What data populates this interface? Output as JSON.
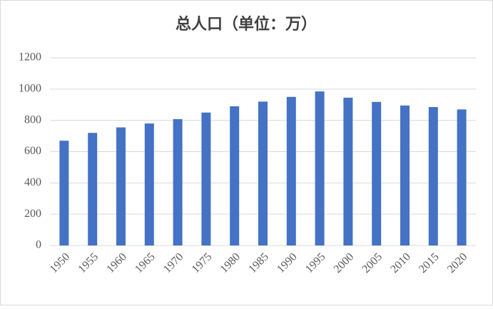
{
  "chart_data": {
    "type": "bar",
    "title": "总人口（单位：万）",
    "categories": [
      "1950",
      "1955",
      "1960",
      "1965",
      "1970",
      "1975",
      "1980",
      "1985",
      "1990",
      "1995",
      "2000",
      "2005",
      "2010",
      "2015",
      "2020"
    ],
    "values": [
      670,
      720,
      755,
      780,
      808,
      850,
      890,
      920,
      950,
      985,
      945,
      918,
      895,
      885,
      870
    ],
    "color": "#4472c4",
    "ylim": [
      0,
      1200
    ],
    "yticks": [
      0,
      200,
      400,
      600,
      800,
      1000,
      1200
    ],
    "grid": true
  }
}
